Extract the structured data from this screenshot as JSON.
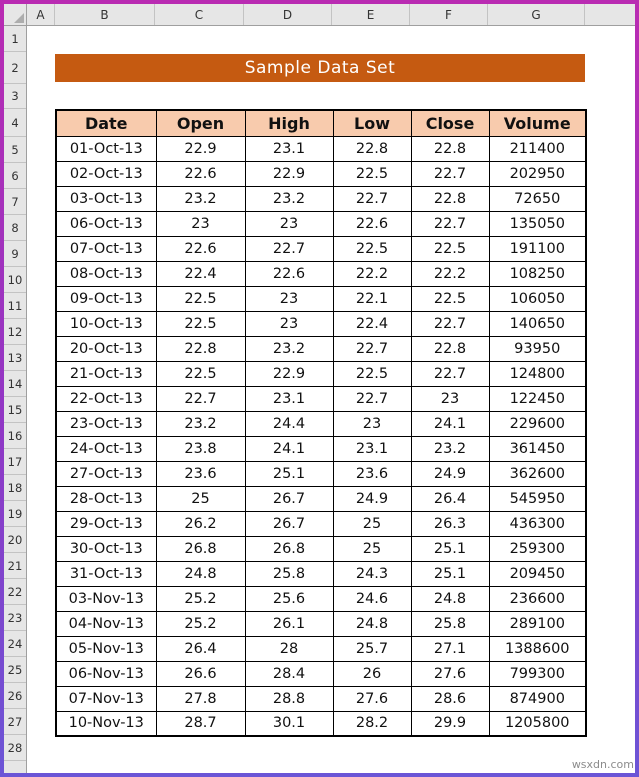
{
  "watermark": "wsxdn.com",
  "colors": {
    "frame_border_top": "#b92bb2",
    "frame_border_bottom": "#6b55d6",
    "banner_bg": "#c55a11",
    "banner_fg": "#ffffff",
    "table_header_bg": "#f8cbad",
    "table_border": "#000000",
    "chrome_bg": "#e6e6e6"
  },
  "spreadsheet": {
    "column_headers": [
      "A",
      "B",
      "C",
      "D",
      "E",
      "F",
      "G"
    ],
    "row_numbers": [
      1,
      2,
      3,
      4,
      5,
      6,
      7,
      8,
      9,
      10,
      11,
      12,
      13,
      14,
      15,
      16,
      17,
      18,
      19,
      20,
      21,
      22,
      23,
      24,
      25,
      26,
      27,
      28
    ],
    "title_banner": {
      "text": "Sample Data Set"
    },
    "table": {
      "headers": [
        "Date",
        "Open",
        "High",
        "Low",
        "Close",
        "Volume"
      ],
      "rows": [
        [
          "01-Oct-13",
          "22.9",
          "23.1",
          "22.8",
          "22.8",
          "211400"
        ],
        [
          "02-Oct-13",
          "22.6",
          "22.9",
          "22.5",
          "22.7",
          "202950"
        ],
        [
          "03-Oct-13",
          "23.2",
          "23.2",
          "22.7",
          "22.8",
          "72650"
        ],
        [
          "06-Oct-13",
          "23",
          "23",
          "22.6",
          "22.7",
          "135050"
        ],
        [
          "07-Oct-13",
          "22.6",
          "22.7",
          "22.5",
          "22.5",
          "191100"
        ],
        [
          "08-Oct-13",
          "22.4",
          "22.6",
          "22.2",
          "22.2",
          "108250"
        ],
        [
          "09-Oct-13",
          "22.5",
          "23",
          "22.1",
          "22.5",
          "106050"
        ],
        [
          "10-Oct-13",
          "22.5",
          "23",
          "22.4",
          "22.7",
          "140650"
        ],
        [
          "20-Oct-13",
          "22.8",
          "23.2",
          "22.7",
          "22.8",
          "93950"
        ],
        [
          "21-Oct-13",
          "22.5",
          "22.9",
          "22.5",
          "22.7",
          "124800"
        ],
        [
          "22-Oct-13",
          "22.7",
          "23.1",
          "22.7",
          "23",
          "122450"
        ],
        [
          "23-Oct-13",
          "23.2",
          "24.4",
          "23",
          "24.1",
          "229600"
        ],
        [
          "24-Oct-13",
          "23.8",
          "24.1",
          "23.1",
          "23.2",
          "361450"
        ],
        [
          "27-Oct-13",
          "23.6",
          "25.1",
          "23.6",
          "24.9",
          "362600"
        ],
        [
          "28-Oct-13",
          "25",
          "26.7",
          "24.9",
          "26.4",
          "545950"
        ],
        [
          "29-Oct-13",
          "26.2",
          "26.7",
          "25",
          "26.3",
          "436300"
        ],
        [
          "30-Oct-13",
          "26.8",
          "26.8",
          "25",
          "25.1",
          "259300"
        ],
        [
          "31-Oct-13",
          "24.8",
          "25.8",
          "24.3",
          "25.1",
          "209450"
        ],
        [
          "03-Nov-13",
          "25.2",
          "25.6",
          "24.6",
          "24.8",
          "236600"
        ],
        [
          "04-Nov-13",
          "25.2",
          "26.1",
          "24.8",
          "25.8",
          "289100"
        ],
        [
          "05-Nov-13",
          "26.4",
          "28",
          "25.7",
          "27.1",
          "1388600"
        ],
        [
          "06-Nov-13",
          "26.6",
          "28.4",
          "26",
          "27.6",
          "799300"
        ],
        [
          "07-Nov-13",
          "27.8",
          "28.8",
          "27.6",
          "28.6",
          "874900"
        ],
        [
          "10-Nov-13",
          "28.7",
          "30.1",
          "28.2",
          "29.9",
          "1205800"
        ]
      ]
    }
  }
}
